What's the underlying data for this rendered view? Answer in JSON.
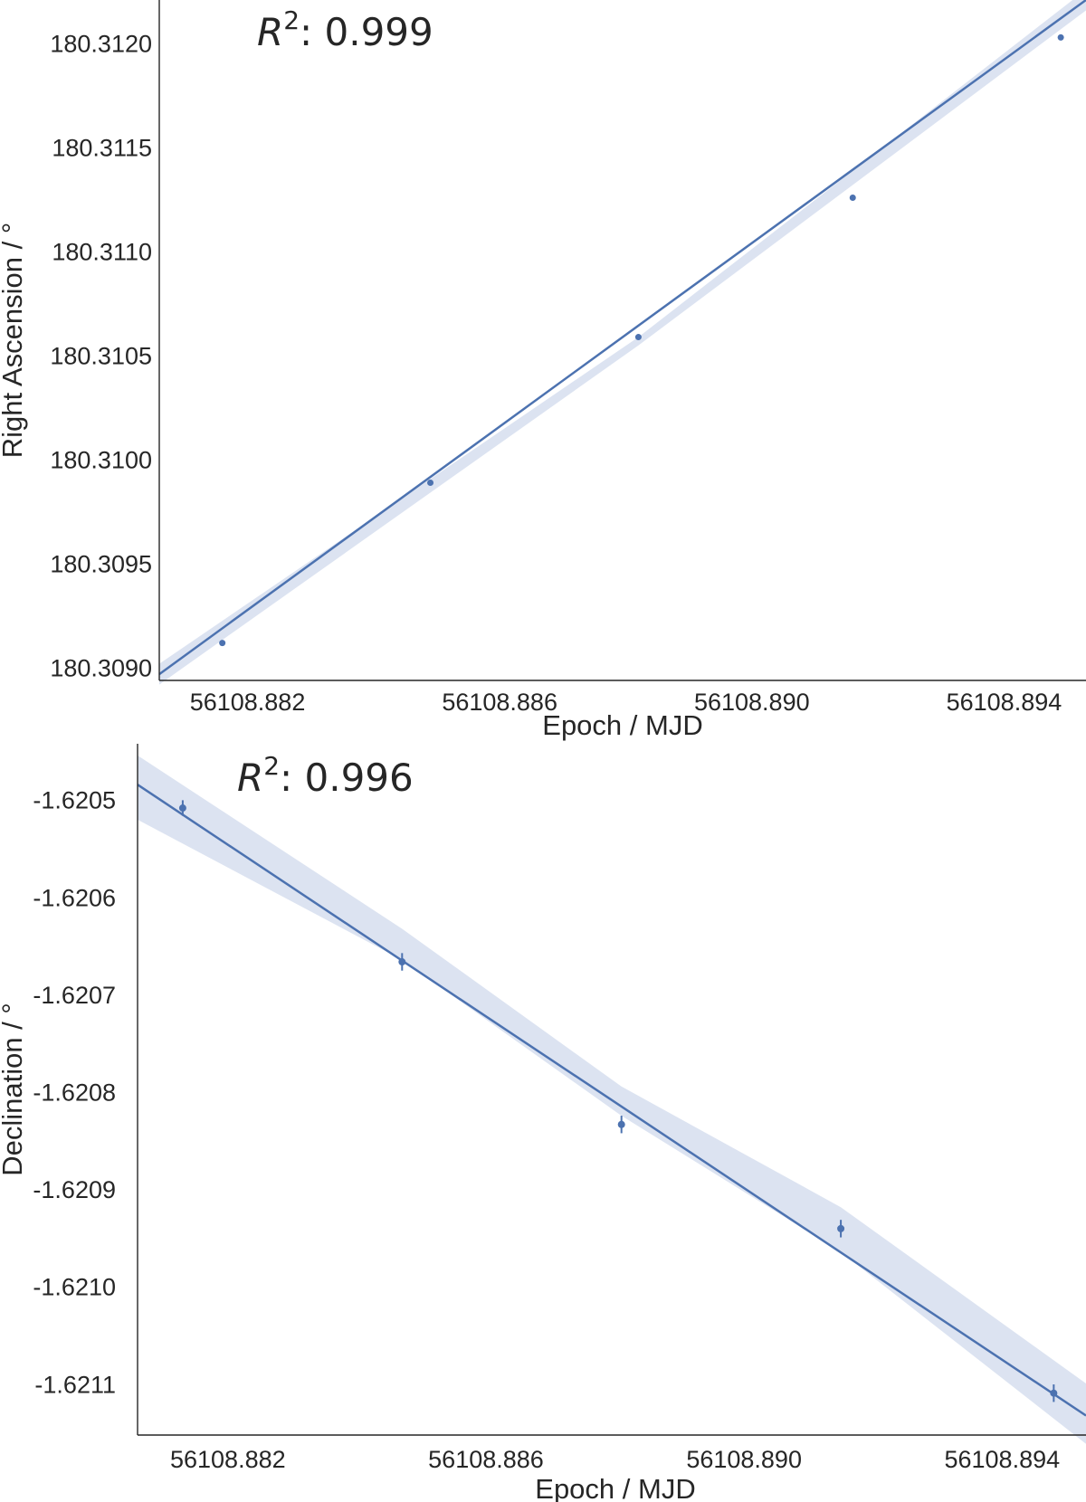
{
  "chart_data": [
    {
      "type": "scatter",
      "fit": "linear",
      "annotation": {
        "prefix": "R",
        "superscript": "2",
        "value": ": 0.999"
      },
      "xlabel": "Epoch / MJD",
      "ylabel": "Right Ascension / °",
      "xlim": [
        56108.8806,
        56108.8953
      ],
      "ylim": [
        180.30895,
        180.31222
      ],
      "xticks": [
        "56108.882",
        "56108.886",
        "56108.890",
        "56108.894"
      ],
      "yticks": [
        "180.3090",
        "180.3095",
        "180.3100",
        "180.3105",
        "180.3110",
        "180.3115",
        "180.3120"
      ],
      "grid": false,
      "points": {
        "x": [
          56108.8816,
          56108.8849,
          56108.8882,
          56108.8916,
          56108.8949
        ],
        "y": [
          180.30913,
          180.3099,
          180.3106,
          180.31127,
          180.31204
        ],
        "yerr": [
          4e-07,
          4e-07,
          4e-07,
          4e-07,
          4e-07
        ]
      },
      "fit_line": {
        "x": [
          56108.8806,
          56108.8953
        ],
        "y": [
          180.30898,
          180.31222
        ]
      },
      "band": {
        "x": [
          56108.8806,
          56108.8882,
          56108.8953
        ],
        "lower": [
          180.30893,
          180.31056,
          180.31217
        ],
        "upper": [
          180.30903,
          180.3106,
          180.31227
        ]
      },
      "colors": {
        "series": "#4c72b0",
        "band": "#dce3f1"
      }
    },
    {
      "type": "scatter",
      "fit": "linear",
      "annotation": {
        "prefix": "R",
        "superscript": "2",
        "value": ": 0.996"
      },
      "xlabel": "Epoch / MJD",
      "ylabel": "Declination / °",
      "xlim": [
        56108.8806,
        56108.8953
      ],
      "ylim": [
        -1.62115,
        -1.62044
      ],
      "xticks": [
        "56108.882",
        "56108.886",
        "56108.890",
        "56108.894"
      ],
      "yticks": [
        "-1.6205",
        "-1.6206",
        "-1.6207",
        "-1.6208",
        "-1.6209",
        "-1.6210",
        "-1.6211"
      ],
      "grid": false,
      "points": {
        "x": [
          56108.8813,
          56108.8847,
          56108.8881,
          56108.8915,
          56108.8948
        ],
        "y": [
          -1.620506,
          -1.620664,
          -1.620831,
          -1.620938,
          -1.621107
        ],
        "yerr": [
          8e-06,
          9e-06,
          9e-06,
          9e-06,
          9e-06
        ]
      },
      "fit_line": {
        "x": [
          56108.8806,
          56108.8953
        ],
        "y": [
          -1.620482,
          -1.62113
        ]
      },
      "band": {
        "x": [
          56108.8806,
          56108.8847,
          56108.8881,
          56108.8915,
          56108.8953
        ],
        "lower": [
          -1.620518,
          -1.620662,
          -1.620822,
          -1.620962,
          -1.621159
        ],
        "upper": [
          -1.620452,
          -1.62063,
          -1.620792,
          -1.620916,
          -1.621097
        ]
      },
      "colors": {
        "series": "#4c72b0",
        "band": "#dce3f1"
      }
    }
  ]
}
